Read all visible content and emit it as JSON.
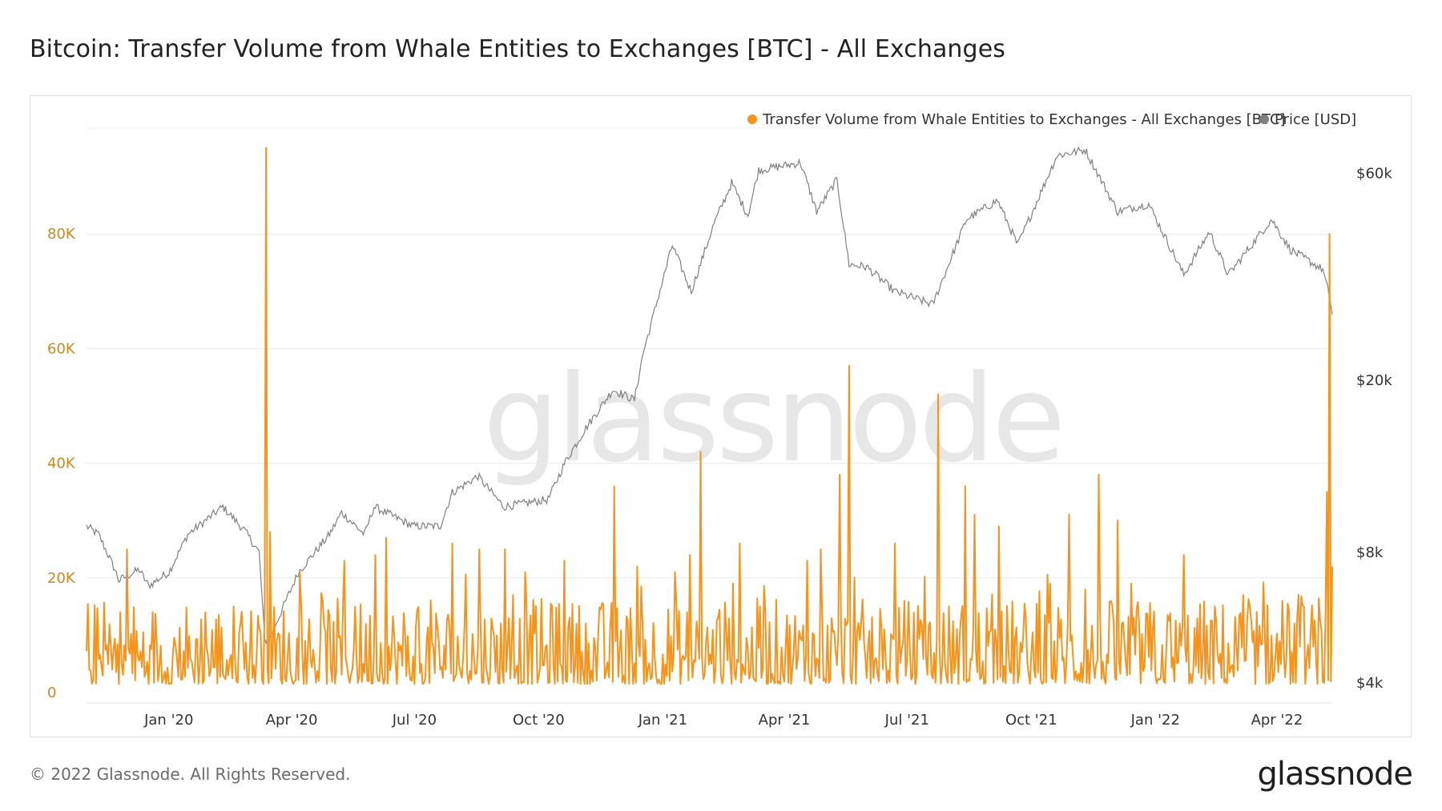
{
  "header": {
    "title": "Bitcoin: Transfer Volume from Whale Entities to Exchanges [BTC] - All Exchanges"
  },
  "footer": {
    "copyright": "© 2022 Glassnode. All Rights Reserved.",
    "brand": "glassnode"
  },
  "watermark": "glassnode",
  "colors": {
    "volume": "#f7931a",
    "price": "#808080",
    "grid": "#ececec",
    "left_ticks": "#c88a1e"
  },
  "chart_data": {
    "type": "line",
    "title": "Bitcoin: Transfer Volume from Whale Entities to Exchanges [BTC] - All Exchanges",
    "x_range": [
      "2019-11-01",
      "2022-05-12"
    ],
    "x_ticks": [
      {
        "label": "Jan '20",
        "date": "2020-01-01"
      },
      {
        "label": "Apr '20",
        "date": "2020-04-01"
      },
      {
        "label": "Jul '20",
        "date": "2020-07-01"
      },
      {
        "label": "Oct '20",
        "date": "2020-10-01"
      },
      {
        "label": "Jan '21",
        "date": "2021-01-01"
      },
      {
        "label": "Apr '21",
        "date": "2021-04-01"
      },
      {
        "label": "Jul '21",
        "date": "2021-07-01"
      },
      {
        "label": "Oct '21",
        "date": "2021-10-01"
      },
      {
        "label": "Jan '22",
        "date": "2022-01-01"
      },
      {
        "label": "Apr '22",
        "date": "2022-04-01"
      }
    ],
    "y_left": {
      "range": [
        0,
        100000
      ],
      "ticks": [
        {
          "label": "0",
          "value": 0
        },
        {
          "label": "20K",
          "value": 20000
        },
        {
          "label": "40K",
          "value": 40000
        },
        {
          "label": "60K",
          "value": 60000
        },
        {
          "label": "80K",
          "value": 80000
        }
      ]
    },
    "y_right": {
      "scale": "log",
      "range": [
        3800,
        80000
      ],
      "ticks": [
        {
          "label": "$4k",
          "value": 4000
        },
        {
          "label": "$8k",
          "value": 8000
        },
        {
          "label": "$20k",
          "value": 20000
        },
        {
          "label": "$60k",
          "value": 60000
        }
      ]
    },
    "legend": {
      "placement": "top-right"
    },
    "grid": true,
    "series": [
      {
        "name": "Transfer Volume from Whale Entities to Exchanges - All Exchanges [BTC]",
        "axis": "left",
        "spikes": [
          [
            "2019-12-01",
            25000
          ],
          [
            "2020-01-28",
            14000
          ],
          [
            "2020-03-13",
            95000
          ],
          [
            "2020-03-16",
            28000
          ],
          [
            "2020-04-07",
            21000
          ],
          [
            "2020-05-10",
            23000
          ],
          [
            "2020-05-18",
            15000
          ],
          [
            "2020-06-02",
            24000
          ],
          [
            "2020-06-10",
            27000
          ],
          [
            "2020-07-29",
            26000
          ],
          [
            "2020-08-18",
            25000
          ],
          [
            "2020-09-06",
            25000
          ],
          [
            "2020-09-21",
            21000
          ],
          [
            "2020-10-20",
            23000
          ],
          [
            "2020-11-26",
            36000
          ],
          [
            "2020-12-13",
            22000
          ],
          [
            "2021-01-10",
            21000
          ],
          [
            "2021-01-21",
            24000
          ],
          [
            "2021-01-29",
            42000
          ],
          [
            "2021-02-22",
            19000
          ],
          [
            "2021-02-27",
            26000
          ],
          [
            "2021-03-14",
            15000
          ],
          [
            "2021-04-18",
            23000
          ],
          [
            "2021-04-28",
            25000
          ],
          [
            "2021-05-12",
            38000
          ],
          [
            "2021-05-19",
            57000
          ],
          [
            "2021-05-23",
            20000
          ],
          [
            "2021-06-22",
            26000
          ],
          [
            "2021-07-24",
            52000
          ],
          [
            "2021-08-13",
            36000
          ],
          [
            "2021-08-20",
            31000
          ],
          [
            "2021-09-07",
            29000
          ],
          [
            "2021-10-15",
            19000
          ],
          [
            "2021-10-29",
            31000
          ],
          [
            "2021-11-10",
            18000
          ],
          [
            "2021-11-20",
            38000
          ],
          [
            "2021-12-04",
            30000
          ],
          [
            "2021-12-14",
            19000
          ],
          [
            "2022-01-22",
            24000
          ],
          [
            "2022-03-07",
            17000
          ],
          [
            "2022-04-05",
            16000
          ],
          [
            "2022-05-08",
            35000
          ],
          [
            "2022-05-10",
            80000
          ],
          [
            "2022-05-12",
            22000
          ]
        ]
      },
      {
        "name": "Price [USD]",
        "axis": "right",
        "points": [
          [
            "2019-11-01",
            9200
          ],
          [
            "2019-11-10",
            8800
          ],
          [
            "2019-11-22",
            7300
          ],
          [
            "2019-11-25",
            6900
          ],
          [
            "2019-12-10",
            7300
          ],
          [
            "2019-12-17",
            6700
          ],
          [
            "2020-01-01",
            7200
          ],
          [
            "2020-01-15",
            8800
          ],
          [
            "2020-02-10",
            10200
          ],
          [
            "2020-02-26",
            9000
          ],
          [
            "2020-03-08",
            8000
          ],
          [
            "2020-03-12",
            5000
          ],
          [
            "2020-03-16",
            5100
          ],
          [
            "2020-04-06",
            7200
          ],
          [
            "2020-04-29",
            8800
          ],
          [
            "2020-05-08",
            9900
          ],
          [
            "2020-05-25",
            8800
          ],
          [
            "2020-06-01",
            10200
          ],
          [
            "2020-06-30",
            9200
          ],
          [
            "2020-07-20",
            9200
          ],
          [
            "2020-07-29",
            11000
          ],
          [
            "2020-08-17",
            12000
          ],
          [
            "2020-09-05",
            10200
          ],
          [
            "2020-10-08",
            10600
          ],
          [
            "2020-10-21",
            13000
          ],
          [
            "2020-11-05",
            15500
          ],
          [
            "2020-11-25",
            19000
          ],
          [
            "2020-12-11",
            18000
          ],
          [
            "2020-12-17",
            22800
          ],
          [
            "2021-01-08",
            41000
          ],
          [
            "2021-01-22",
            32000
          ],
          [
            "2021-02-08",
            46000
          ],
          [
            "2021-02-21",
            57000
          ],
          [
            "2021-03-05",
            48000
          ],
          [
            "2021-03-13",
            61000
          ],
          [
            "2021-04-13",
            63500
          ],
          [
            "2021-04-25",
            49000
          ],
          [
            "2021-05-10",
            58000
          ],
          [
            "2021-05-19",
            37000
          ],
          [
            "2021-06-01",
            36500
          ],
          [
            "2021-06-22",
            32000
          ],
          [
            "2021-07-20",
            29900
          ],
          [
            "2021-08-14",
            47000
          ],
          [
            "2021-09-06",
            52000
          ],
          [
            "2021-09-21",
            41000
          ],
          [
            "2021-10-20",
            66000
          ],
          [
            "2021-11-10",
            68000
          ],
          [
            "2021-12-04",
            49000
          ],
          [
            "2021-12-27",
            51000
          ],
          [
            "2022-01-22",
            35000
          ],
          [
            "2022-02-10",
            44000
          ],
          [
            "2022-02-24",
            35000
          ],
          [
            "2022-03-28",
            47000
          ],
          [
            "2022-04-11",
            40000
          ],
          [
            "2022-05-05",
            36000
          ],
          [
            "2022-05-10",
            31000
          ],
          [
            "2022-05-12",
            28500
          ]
        ]
      }
    ]
  }
}
